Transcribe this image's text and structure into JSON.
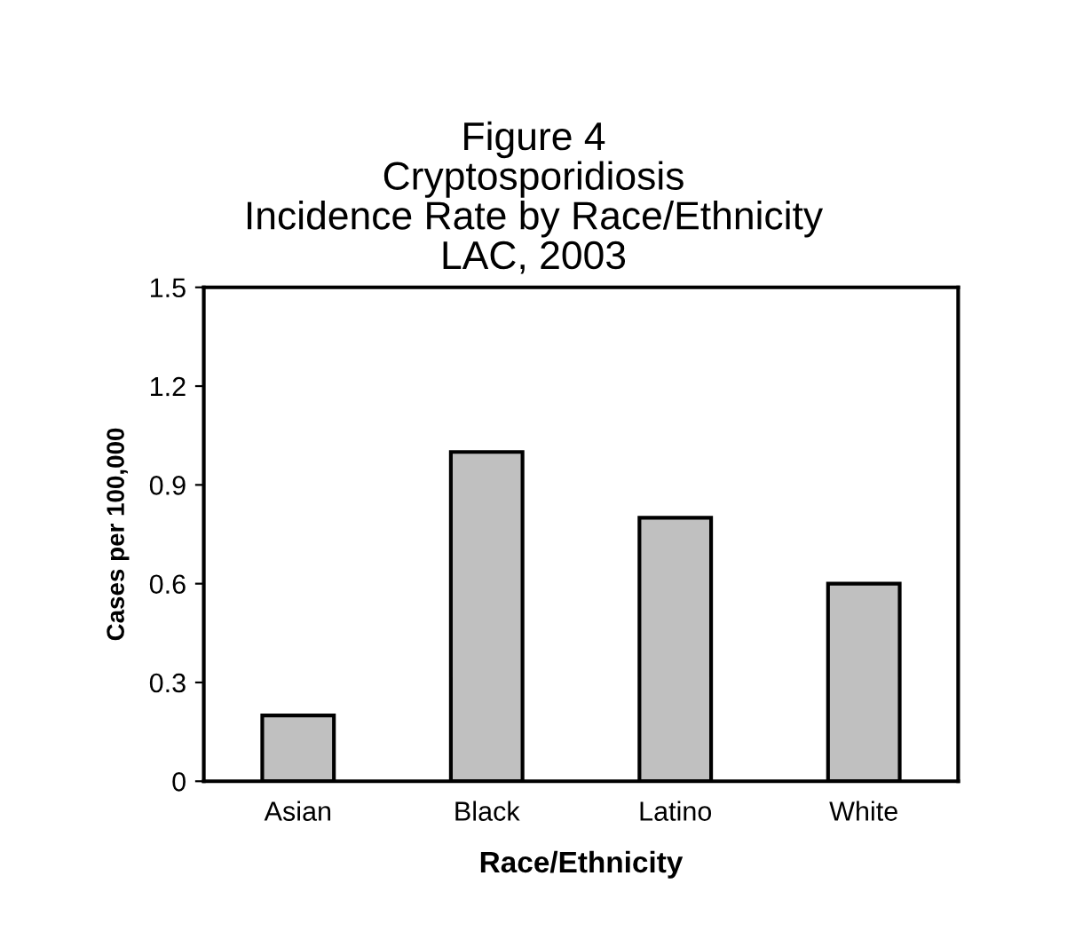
{
  "chart_data": {
    "type": "bar",
    "title": "Figure 4\nCryptosporidiosis\nIncidence Rate by Race/Ethnicity\nLAC, 2003",
    "xlabel": "Race/Ethnicity",
    "ylabel": "Cases per 100,000",
    "categories": [
      "Asian",
      "Black",
      "Latino",
      "White"
    ],
    "values": [
      0.2,
      1.0,
      0.8,
      0.6
    ],
    "color": "#c0c0c0",
    "ylim": [
      0,
      1.5
    ],
    "yticks": [
      0,
      0.3,
      0.6,
      0.9,
      1.2,
      1.5
    ],
    "grid": false
  }
}
